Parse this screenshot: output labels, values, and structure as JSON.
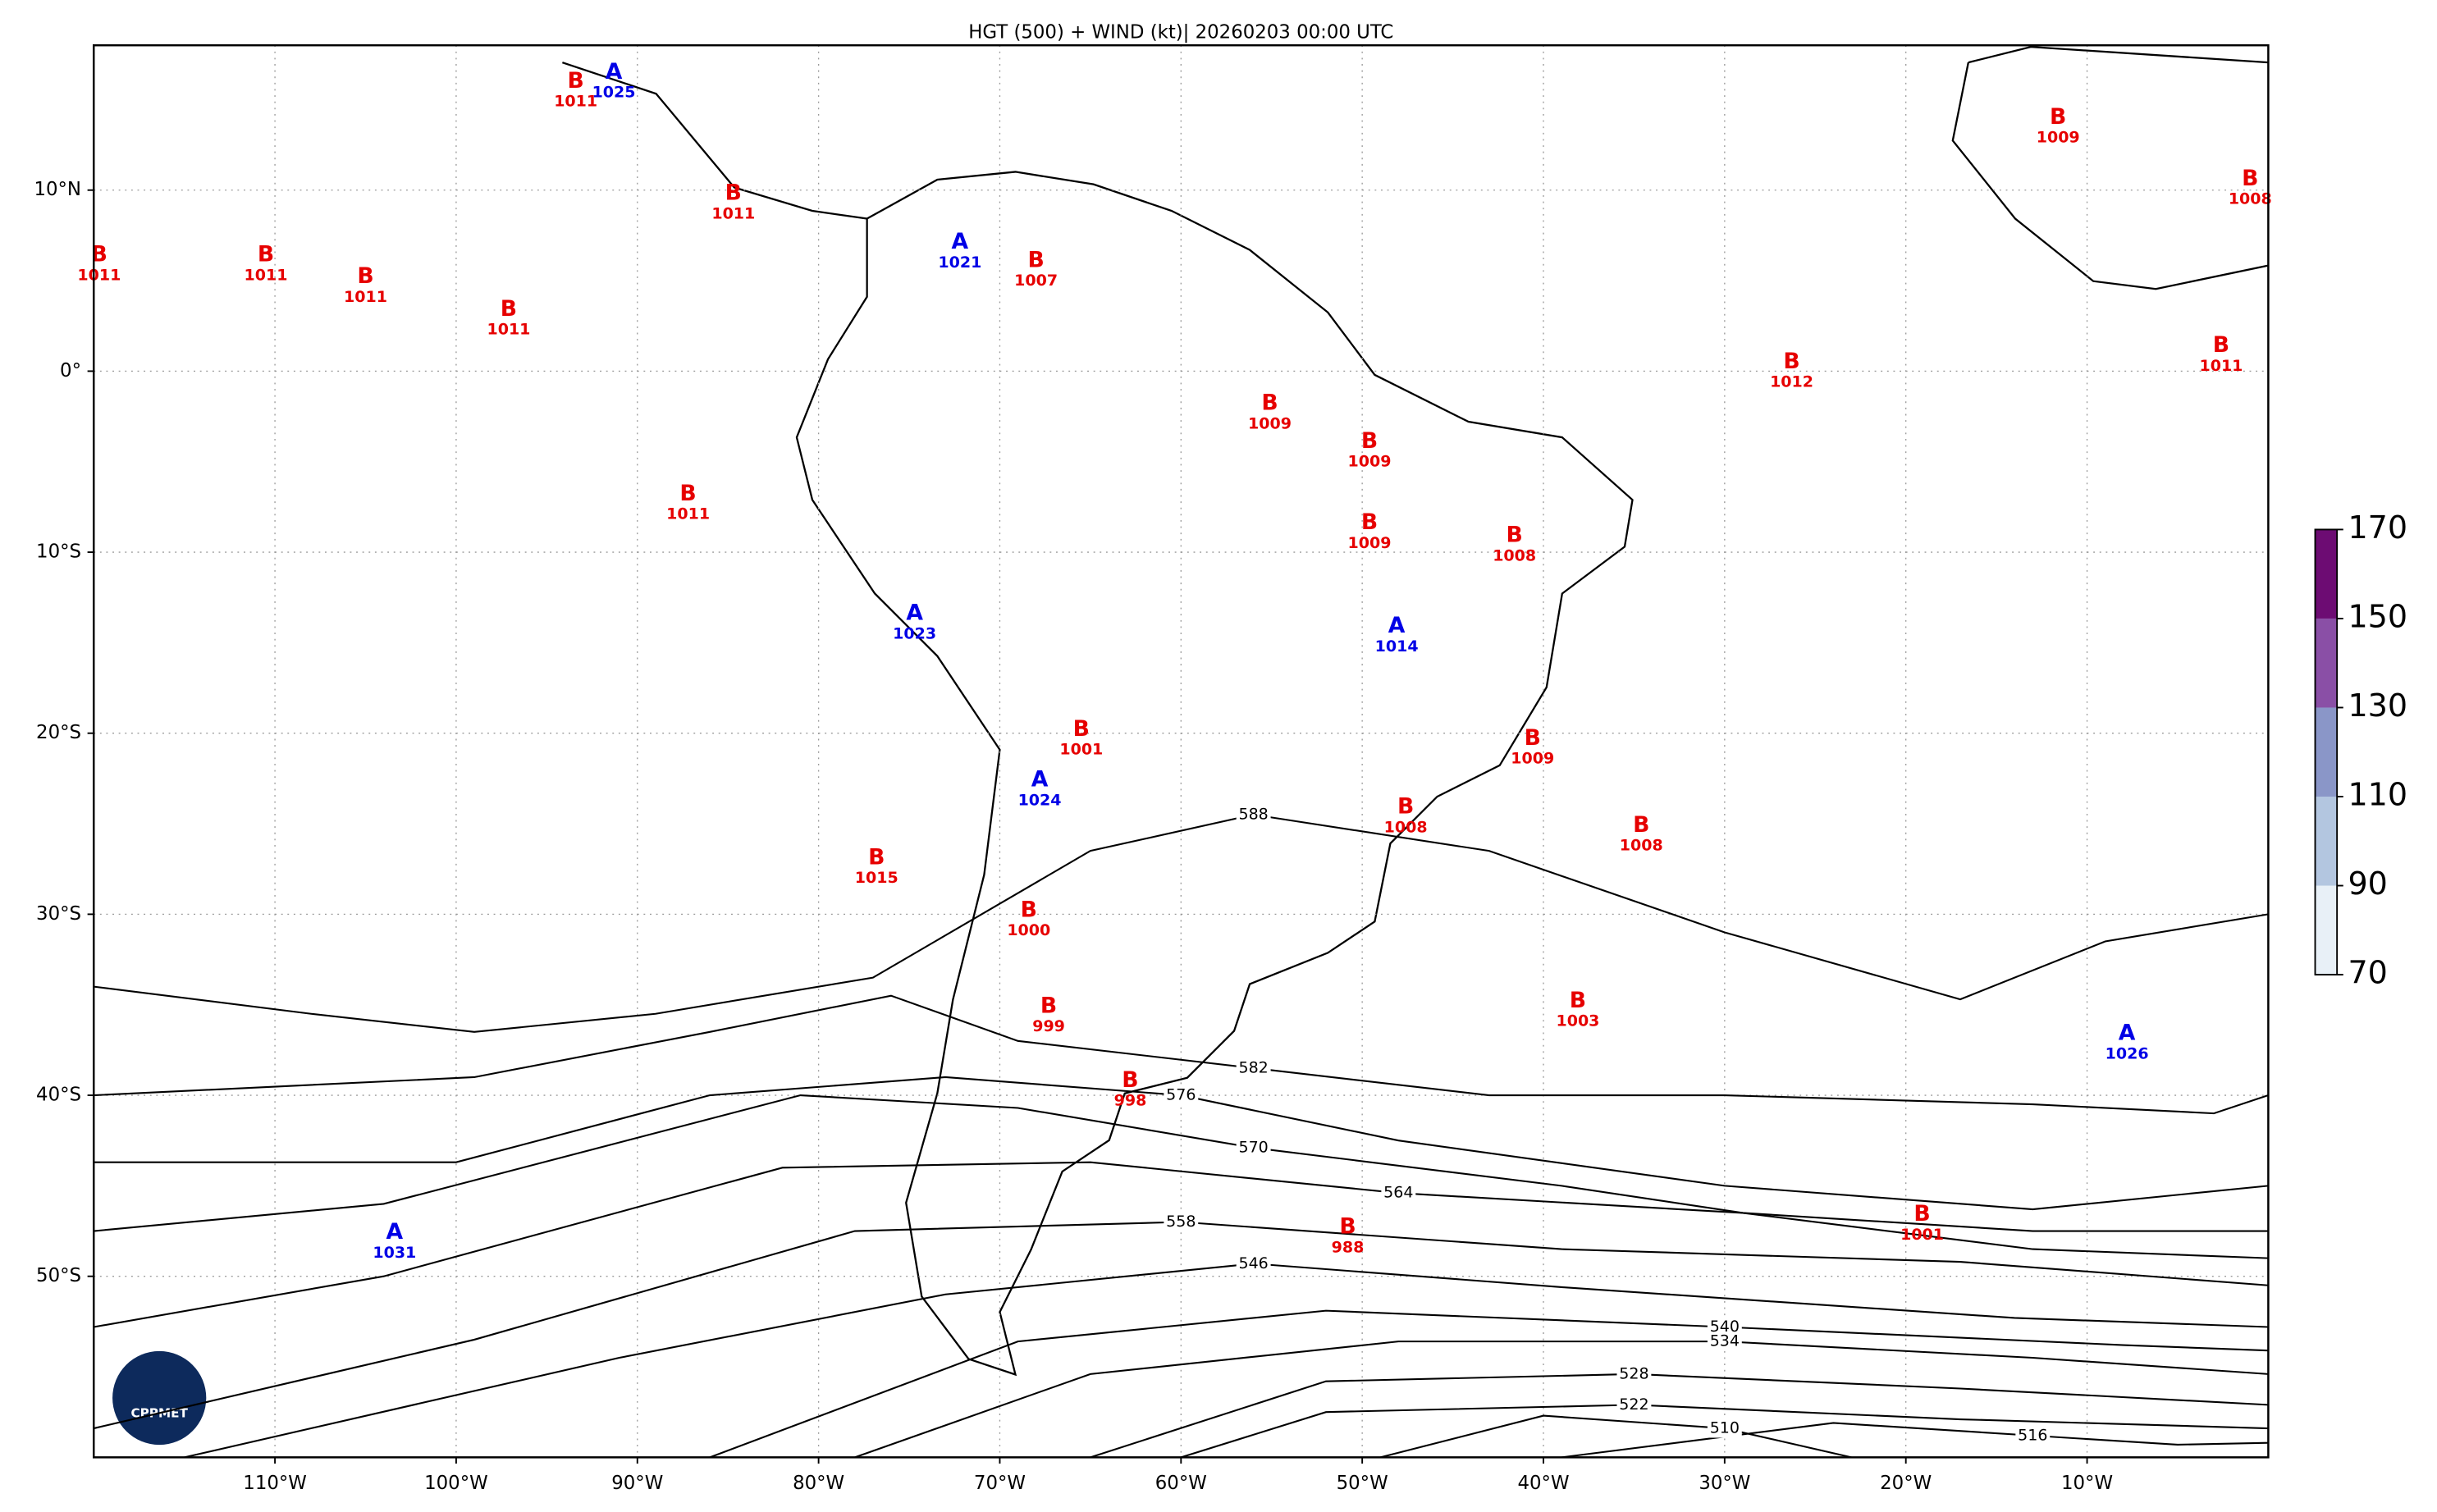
{
  "chart_data": {
    "type": "map",
    "title": "HGT (500) + WIND (kt)| 20260203 00:00 UTC",
    "xlim": [
      -120,
      0
    ],
    "ylim": [
      -60,
      18
    ],
    "xticks": [
      {
        "value": -110,
        "label": "110°W"
      },
      {
        "value": -100,
        "label": "100°W"
      },
      {
        "value": -90,
        "label": "90°W"
      },
      {
        "value": -80,
        "label": "80°W"
      },
      {
        "value": -70,
        "label": "70°W"
      },
      {
        "value": -60,
        "label": "60°W"
      },
      {
        "value": -50,
        "label": "50°W"
      },
      {
        "value": -40,
        "label": "40°W"
      },
      {
        "value": -30,
        "label": "30°W"
      },
      {
        "value": -20,
        "label": "20°W"
      },
      {
        "value": -10,
        "label": "10°W"
      }
    ],
    "yticks": [
      {
        "value": 10,
        "label": "10°N"
      },
      {
        "value": 0,
        "label": "0°"
      },
      {
        "value": -10,
        "label": "10°S"
      },
      {
        "value": -20,
        "label": "20°S"
      },
      {
        "value": -30,
        "label": "30°S"
      },
      {
        "value": -40,
        "label": "40°S"
      },
      {
        "value": -50,
        "label": "50°S"
      }
    ],
    "grid": true,
    "contours": [
      {
        "value": 588,
        "lon": [
          -120,
          -108,
          -99,
          -89,
          -77,
          -65,
          -56,
          -43,
          -30,
          -17,
          -9,
          0
        ],
        "lat": [
          -34,
          -35.5,
          -36.5,
          -35.5,
          -33.5,
          -26.5,
          -24.5,
          -26.5,
          -31,
          -34.7,
          -31.5,
          -30
        ]
      },
      {
        "value": 582,
        "lon": [
          -120,
          -99,
          -86,
          -76,
          -69,
          -56,
          -43,
          -30,
          -13,
          -3,
          0
        ],
        "lat": [
          -40,
          -39,
          -36.5,
          -34.5,
          -37,
          -38.5,
          -40,
          -40,
          -40.5,
          -41,
          -40
        ]
      },
      {
        "value": 576,
        "lon": [
          -120,
          -100,
          -86,
          -73,
          -60,
          -48,
          -30,
          -13,
          0
        ],
        "lat": [
          -43.7,
          -43.7,
          -40,
          -39,
          -40,
          -42.5,
          -45,
          -46.3,
          -45
        ]
      },
      {
        "value": 570,
        "lon": [
          -120,
          -104,
          -81,
          -69,
          -56,
          -39,
          -29,
          -13,
          0
        ],
        "lat": [
          -47.5,
          -46,
          -40,
          -40.7,
          -42.9,
          -45,
          -46.5,
          -47.5,
          -47.5
        ]
      },
      {
        "value": 564,
        "lon": [
          -120,
          -104,
          -82,
          -65,
          -48,
          -29,
          -13,
          0
        ],
        "lat": [
          -52.8,
          -50,
          -44,
          -43.7,
          -45.4,
          -46.5,
          -48.5,
          -49
        ]
      },
      {
        "value": 558,
        "lon": [
          -120,
          -99,
          -78,
          -60,
          -39,
          -17,
          0
        ],
        "lat": [
          -58.4,
          -53.5,
          -47.5,
          -47,
          -48.5,
          -49.2,
          -50.5
        ]
      },
      {
        "value": 546,
        "lon": [
          -115,
          -91,
          -73,
          -56,
          -39,
          -14,
          0
        ],
        "lat": [
          -60,
          -54.5,
          -51,
          -49.3,
          -50.6,
          -52.3,
          -52.8
        ]
      },
      {
        "value": 540,
        "lon": [
          -86,
          -69,
          -52,
          -30,
          -8,
          0
        ],
        "lat": [
          -60,
          -53.6,
          -51.9,
          -52.8,
          -53.8,
          -54.1
        ]
      },
      {
        "value": 534,
        "lon": [
          -78,
          -65,
          -48,
          -30,
          -13,
          0
        ],
        "lat": [
          -60,
          -55.4,
          -53.6,
          -53.6,
          -54.5,
          -55.4
        ]
      },
      {
        "value": 528,
        "lon": [
          -65,
          -52,
          -35,
          -17,
          0
        ],
        "lat": [
          -60,
          -55.8,
          -55.4,
          -56.2,
          -57.1
        ]
      },
      {
        "value": 522,
        "lon": [
          -60,
          -52,
          -35,
          -17,
          0
        ],
        "lat": [
          -60,
          -57.5,
          -57.1,
          -57.9,
          -58.4
        ]
      },
      {
        "value": 516,
        "lon": [
          -39,
          -24,
          -13,
          -5,
          0
        ],
        "lat": [
          -60,
          -58.1,
          -58.8,
          -59.3,
          -59.2
        ]
      },
      {
        "value": 510,
        "lon": [
          -49,
          -40,
          -30,
          -23
        ],
        "lat": [
          -60,
          -57.7,
          -58.4,
          -60
        ]
      }
    ],
    "centers": [
      {
        "letter": "B",
        "value": 1011,
        "lon": -93.4,
        "lat": 16
      },
      {
        "letter": "A",
        "value": 1025,
        "lon": -91.3,
        "lat": 16.5
      },
      {
        "letter": "B",
        "value": 1011,
        "lon": -84.7,
        "lat": 9.8
      },
      {
        "letter": "B",
        "value": 1011,
        "lon": -119.7,
        "lat": 6.4
      },
      {
        "letter": "B",
        "value": 1011,
        "lon": -110.5,
        "lat": 6.4
      },
      {
        "letter": "B",
        "value": 1011,
        "lon": -105,
        "lat": 5.2
      },
      {
        "letter": "B",
        "value": 1011,
        "lon": -97.1,
        "lat": 3.4
      },
      {
        "letter": "A",
        "value": 1021,
        "lon": -72.2,
        "lat": 7.1
      },
      {
        "letter": "B",
        "value": 1007,
        "lon": -68,
        "lat": 6.1
      },
      {
        "letter": "B",
        "value": 1009,
        "lon": -55.1,
        "lat": -1.8
      },
      {
        "letter": "B",
        "value": 1009,
        "lon": -49.6,
        "lat": -3.9
      },
      {
        "letter": "B",
        "value": 1009,
        "lon": -49.6,
        "lat": -8.4
      },
      {
        "letter": "B",
        "value": 1008,
        "lon": -41.6,
        "lat": -9.1
      },
      {
        "letter": "A",
        "value": 1014,
        "lon": -48.1,
        "lat": -14.1
      },
      {
        "letter": "B",
        "value": 1011,
        "lon": -87.2,
        "lat": -6.8
      },
      {
        "letter": "A",
        "value": 1023,
        "lon": -74.7,
        "lat": -13.4
      },
      {
        "letter": "B",
        "value": 1001,
        "lon": -65.5,
        "lat": -19.8
      },
      {
        "letter": "A",
        "value": 1024,
        "lon": -67.8,
        "lat": -22.6
      },
      {
        "letter": "B",
        "value": 1009,
        "lon": -40.6,
        "lat": -20.3
      },
      {
        "letter": "B",
        "value": 1008,
        "lon": -47.6,
        "lat": -24.1
      },
      {
        "letter": "B",
        "value": 1008,
        "lon": -34.6,
        "lat": -25.1
      },
      {
        "letter": "B",
        "value": 1015,
        "lon": -76.8,
        "lat": -26.9
      },
      {
        "letter": "B",
        "value": 1000,
        "lon": -68.4,
        "lat": -29.8
      },
      {
        "letter": "B",
        "value": 999,
        "lon": -67.3,
        "lat": -35.1
      },
      {
        "letter": "B",
        "value": 998,
        "lon": -62.8,
        "lat": -39.2
      },
      {
        "letter": "B",
        "value": 1003,
        "lon": -38.1,
        "lat": -34.8
      },
      {
        "letter": "A",
        "value": 1026,
        "lon": -7.8,
        "lat": -36.6
      },
      {
        "letter": "B",
        "value": 988,
        "lon": -50.8,
        "lat": -47.3
      },
      {
        "letter": "B",
        "value": 1001,
        "lon": -19.1,
        "lat": -46.6
      },
      {
        "letter": "A",
        "value": 1031,
        "lon": -103.4,
        "lat": -47.6
      },
      {
        "letter": "B",
        "value": 1012,
        "lon": -26.3,
        "lat": 0.5
      },
      {
        "letter": "B",
        "value": 1009,
        "lon": -11.6,
        "lat": 14
      },
      {
        "letter": "B",
        "value": 1008,
        "lon": -1,
        "lat": 10.6
      },
      {
        "letter": "B",
        "value": 1011,
        "lon": -2.6,
        "lat": 1.4
      }
    ],
    "colorbar": {
      "lim": [
        70,
        170
      ],
      "ticks": [
        70,
        90,
        110,
        130,
        150,
        170
      ],
      "colors": [
        "#e8f0f7",
        "#b3c6e0",
        "#8a96c8",
        "#8a4fa6",
        "#6d0c73"
      ]
    },
    "logo_text": "CPPMET"
  }
}
